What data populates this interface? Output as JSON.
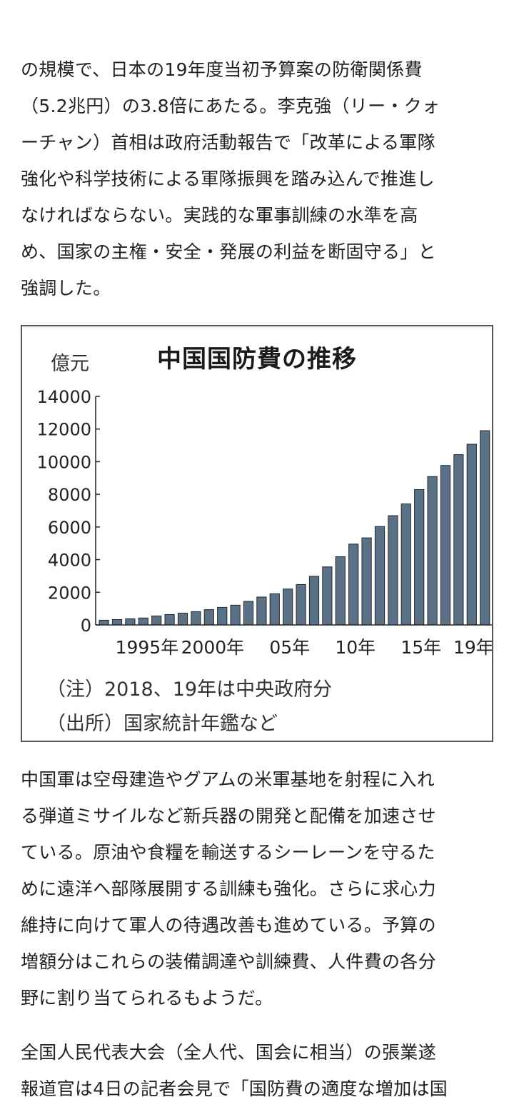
{
  "article": {
    "para1": [
      "の規模で、日本の19年度当初予算案の防衛関係費",
      "（5.2兆円）の3.8倍にあたる。李克強（リー・クォ",
      "ーチャン）首相は政府活動報告で「改革による軍隊",
      "強化や科学技術による軍隊振興を踏み込んで推進し",
      "なければならない。実践的な軍事訓練の水準を高",
      "め、国家の主権・安全・発展の利益を断固守る」と",
      "強調した。"
    ],
    "para2": [
      "中国軍は空母建造やグアムの米軍基地を射程に入れ",
      "る弾道ミサイルなど新兵器の開発と配備を加速させ",
      "ている。原油や食糧を輸送するシーレーンを守るた",
      "めに遠洋へ部隊展開する訓練も強化。さらに求心力",
      "維持に向けて軍人の待遇改善も進めている。予算の",
      "増額分はこれらの装備調達や訓練費、人件費の各分",
      "野に割り当てられるもようだ。"
    ],
    "para3": [
      "全国人民代表大会（全人代、国会に相当）の張業遂",
      "報道官は4日の記者会見で「国防費の適度な増加は国"
    ]
  },
  "chart_data": {
    "type": "bar",
    "title": "中国国防費の推移",
    "ylabel": "億元",
    "ylim": [
      0,
      14000
    ],
    "yticks": [
      0,
      2000,
      4000,
      6000,
      8000,
      10000,
      12000,
      14000
    ],
    "categories": [
      "1990",
      "1991",
      "1992",
      "1993",
      "1994",
      "1995",
      "1996",
      "1997",
      "1998",
      "1999",
      "2000",
      "2001",
      "2002",
      "2003",
      "2004",
      "2005",
      "2006",
      "2007",
      "2008",
      "2009",
      "2010",
      "2011",
      "2012",
      "2013",
      "2014",
      "2015",
      "2016",
      "2017",
      "2018",
      "2019"
    ],
    "values": [
      290,
      330,
      378,
      425,
      550,
      636,
      720,
      813,
      935,
      1076,
      1208,
      1442,
      1708,
      1908,
      2200,
      2475,
      2979,
      3555,
      4179,
      4951,
      5333,
      6028,
      6692,
      7411,
      8290,
      9088,
      9766,
      10432,
      11070,
      11899
    ],
    "xtick_labels": [
      {
        "category": "1995",
        "label": "1995年"
      },
      {
        "category": "2000",
        "label": "2000年"
      },
      {
        "category": "2005",
        "label": "05年"
      },
      {
        "category": "2010",
        "label": "10年"
      },
      {
        "category": "2015",
        "label": "15年"
      },
      {
        "category": "2019",
        "label": "19年"
      }
    ],
    "notes": [
      "（注）2018、19年は中央政府分",
      "（出所）国家統計年鑑など"
    ],
    "bar_color": "#5b7186",
    "bar_edge_color": "#1f2a33",
    "grid": false
  }
}
